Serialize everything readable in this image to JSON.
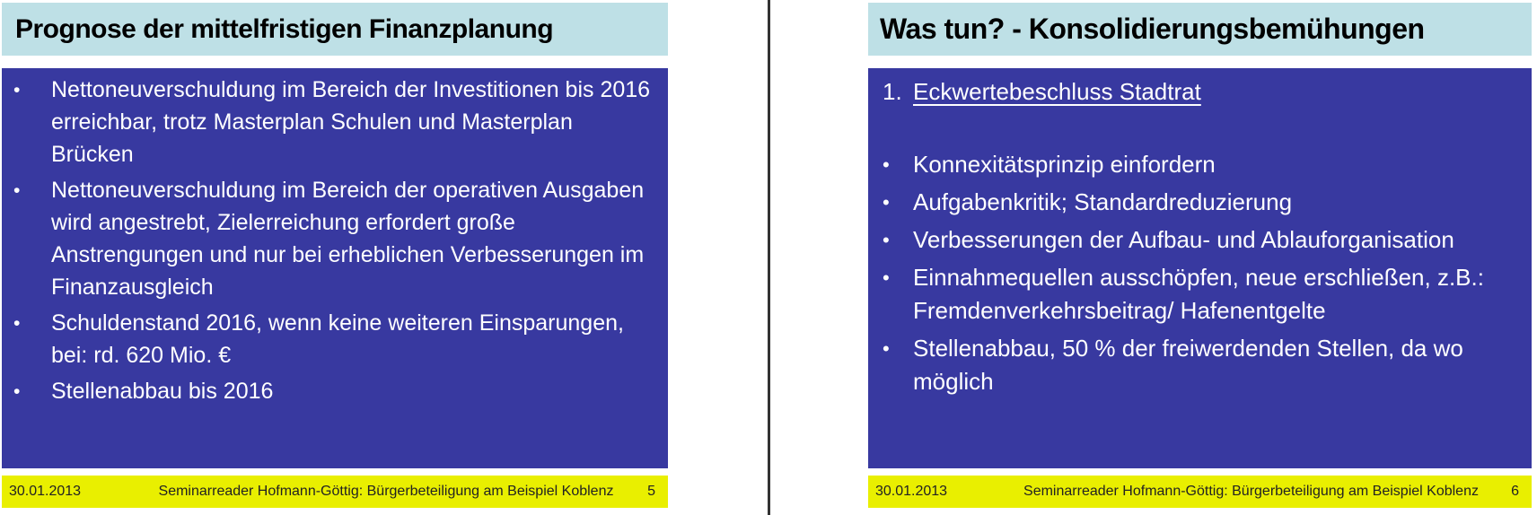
{
  "left_slide": {
    "title": "Prognose der mittelfristigen Finanzplanung",
    "bullets": [
      "Nettoneuverschuldung im Bereich der Investitionen bis 2016 erreichbar, trotz Masterplan Schulen und Masterplan Brücken",
      "Nettoneuverschuldung im Bereich der operativen Ausgaben wird angestrebt, Zielerreichung erfordert große Anstrengungen und nur bei erheblichen Verbesserungen im Finanzausgleich",
      "Schuldenstand 2016, wenn keine weiteren Einsparungen, bei: rd. 620 Mio. €",
      "Stellenabbau bis 2016"
    ],
    "footer": {
      "date": "30.01.2013",
      "source": "Seminarreader Hofmann-Göttig: Bürgerbeteiligung am Beispiel Koblenz",
      "page": "5"
    }
  },
  "right_slide": {
    "title": "Was tun? - Konsolidierungsbemühungen",
    "numbered_item": {
      "number": "1.",
      "text": "Eckwertebeschluss Stadtrat"
    },
    "bullets": [
      "Konnexitätsprinzip einfordern",
      "Aufgabenkritik; Standardreduzierung",
      "Verbesserungen der Aufbau- und Ablauforganisation",
      "Einnahmequellen ausschöpfen, neue erschließen, z.B.: Fremdenverkehrsbeitrag/ Hafenentgelte",
      "Stellenabbau, 50 % der freiwerdenden Stellen, da wo möglich"
    ],
    "footer": {
      "date": "30.01.2013",
      "source": "Seminarreader Hofmann-Göttig: Bürgerbeteiligung am Beispiel Koblenz",
      "page": "6"
    }
  },
  "colors": {
    "title_bar_background": "#BEE0E6",
    "title_text": "#000000",
    "body_background": "#3839A0",
    "body_text": "#FFFFFF",
    "footer_background": "#E9EF00",
    "footer_text": "#222222",
    "divider": "#333333"
  }
}
